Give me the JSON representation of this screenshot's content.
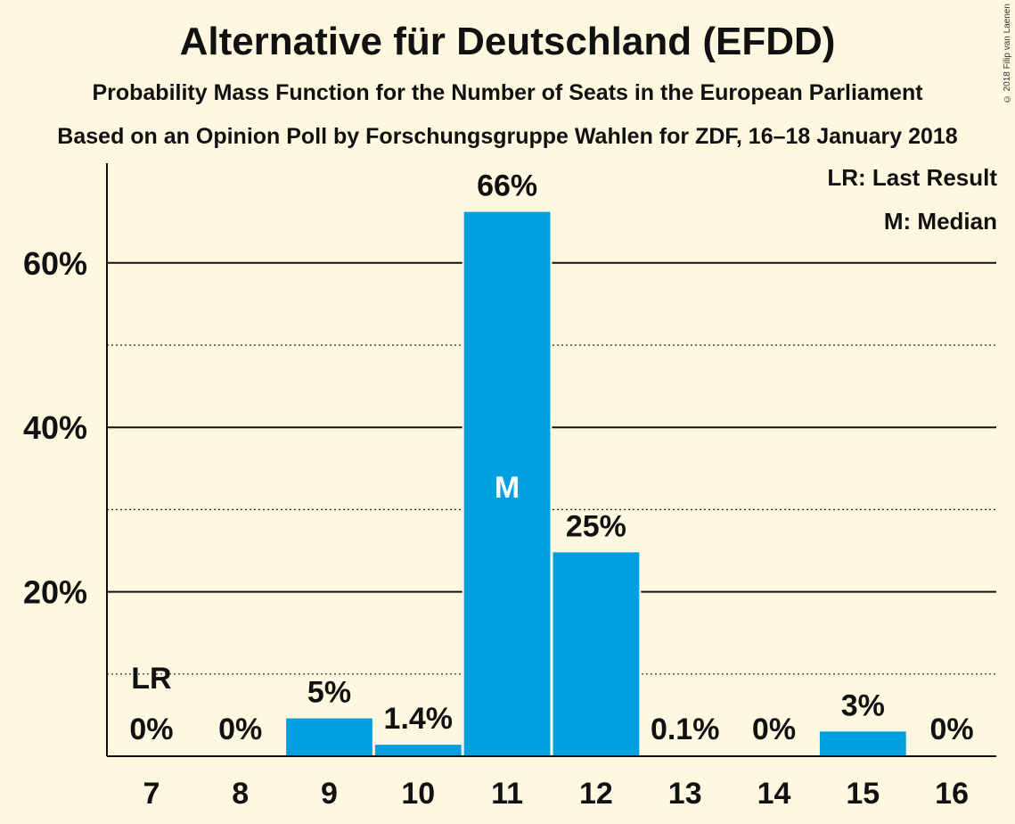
{
  "title": "Alternative für Deutschland (EFDD)",
  "subtitle1": "Probability Mass Function for the Number of Seats in the European Parliament",
  "subtitle2": "Based on an Opinion Poll by Forschungsgruppe Wahlen for ZDF, 16–18 January 2018",
  "copyright": "© 2018 Filip van Laenen",
  "legend": {
    "lr": "LR: Last Result",
    "median": "M: Median"
  },
  "colors": {
    "bar": "#009fe0",
    "background": "#fff8e1"
  },
  "chart_data": {
    "type": "bar",
    "categories": [
      "7",
      "8",
      "9",
      "10",
      "11",
      "12",
      "13",
      "14",
      "15",
      "16"
    ],
    "values": [
      0,
      0,
      4.6,
      1.4,
      66.2,
      24.8,
      0.1,
      0,
      3,
      0
    ],
    "value_labels": [
      "0%",
      "0%",
      "5%",
      "1.4%",
      "66%",
      "25%",
      "0.1%",
      "0%",
      "3%",
      "0%"
    ],
    "ylim": [
      0,
      72
    ],
    "major_ticks": [
      20,
      40,
      60
    ],
    "major_tick_labels": [
      "20%",
      "40%",
      "60%"
    ],
    "minor_gridlines": [
      10,
      30,
      50
    ],
    "last_result_category": "7",
    "last_result_label": "LR",
    "median_category": "11",
    "median_label": "M"
  }
}
